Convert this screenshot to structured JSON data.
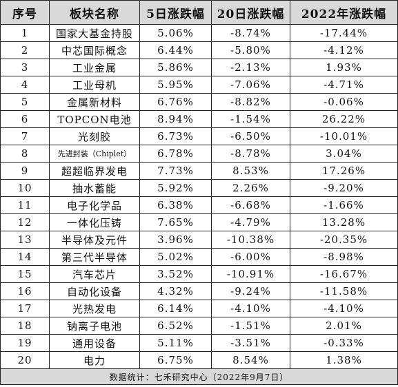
{
  "header": {
    "rank": "序号",
    "sector": "板块名称",
    "d5": "5日涨跌幅",
    "d20": "20日涨跌幅",
    "y2022": "2022年涨跌幅"
  },
  "rows": [
    {
      "rank": "1",
      "sector": "国家大基金持股",
      "d5": "5.06%",
      "d20": "-8.74%",
      "y2022": "-17.44%"
    },
    {
      "rank": "2",
      "sector": "中芯国际概念",
      "d5": "6.44%",
      "d20": "-5.80%",
      "y2022": "-4.12%"
    },
    {
      "rank": "3",
      "sector": "工业金属",
      "d5": "5.86%",
      "d20": "-2.13%",
      "y2022": "1.93%"
    },
    {
      "rank": "4",
      "sector": "工业母机",
      "d5": "5.95%",
      "d20": "-7.06%",
      "y2022": "-4.71%"
    },
    {
      "rank": "5",
      "sector": "金属新材料",
      "d5": "6.76%",
      "d20": "-8.82%",
      "y2022": "-0.06%"
    },
    {
      "rank": "6",
      "sector": "TOPCON电池",
      "d5": "8.94%",
      "d20": "-1.54%",
      "y2022": "26.22%"
    },
    {
      "rank": "7",
      "sector": "光刻胶",
      "d5": "6.73%",
      "d20": "-6.50%",
      "y2022": "-10.01%"
    },
    {
      "rank": "8",
      "sector": "先进封装（Chiplet）",
      "d5": "6.78%",
      "d20": "-8.78%",
      "y2022": "3.04%"
    },
    {
      "rank": "9",
      "sector": "超超临界发电",
      "d5": "7.73%",
      "d20": "8.53%",
      "y2022": "17.26%"
    },
    {
      "rank": "10",
      "sector": "抽水蓄能",
      "d5": "5.92%",
      "d20": "2.26%",
      "y2022": "-9.20%"
    },
    {
      "rank": "11",
      "sector": "电子化学品",
      "d5": "6.38%",
      "d20": "-6.68%",
      "y2022": "-1.66%"
    },
    {
      "rank": "12",
      "sector": "一体化压铸",
      "d5": "7.65%",
      "d20": "-4.79%",
      "y2022": "13.28%"
    },
    {
      "rank": "13",
      "sector": "半导体及元件",
      "d5": "3.96%",
      "d20": "-10.38%",
      "y2022": "-20.35%"
    },
    {
      "rank": "14",
      "sector": "第三代半导体",
      "d5": "5.02%",
      "d20": "-6.00%",
      "y2022": "-8.98%"
    },
    {
      "rank": "15",
      "sector": "汽车芯片",
      "d5": "3.52%",
      "d20": "-10.91%",
      "y2022": "-16.67%"
    },
    {
      "rank": "16",
      "sector": "自动化设备",
      "d5": "4.32%",
      "d20": "-9.24%",
      "y2022": "-11.58%"
    },
    {
      "rank": "17",
      "sector": "光热发电",
      "d5": "6.14%",
      "d20": "-4.10%",
      "y2022": "-4.10%"
    },
    {
      "rank": "18",
      "sector": "钠离子电池",
      "d5": "6.52%",
      "d20": "-1.51%",
      "y2022": "2.01%"
    },
    {
      "rank": "19",
      "sector": "通用设备",
      "d5": "5.11%",
      "d20": "-3.51%",
      "y2022": "-0.33%"
    },
    {
      "rank": "20",
      "sector": "电力",
      "d5": "6.75%",
      "d20": "8.54%",
      "y2022": "1.38%"
    }
  ],
  "footer": {
    "source": "数据统计：七禾研究中心（2022年9月7日）"
  },
  "colors": {
    "header_bg": "#d9d9d9",
    "footer_bg": "#d9d9d9",
    "border": "#222222"
  }
}
